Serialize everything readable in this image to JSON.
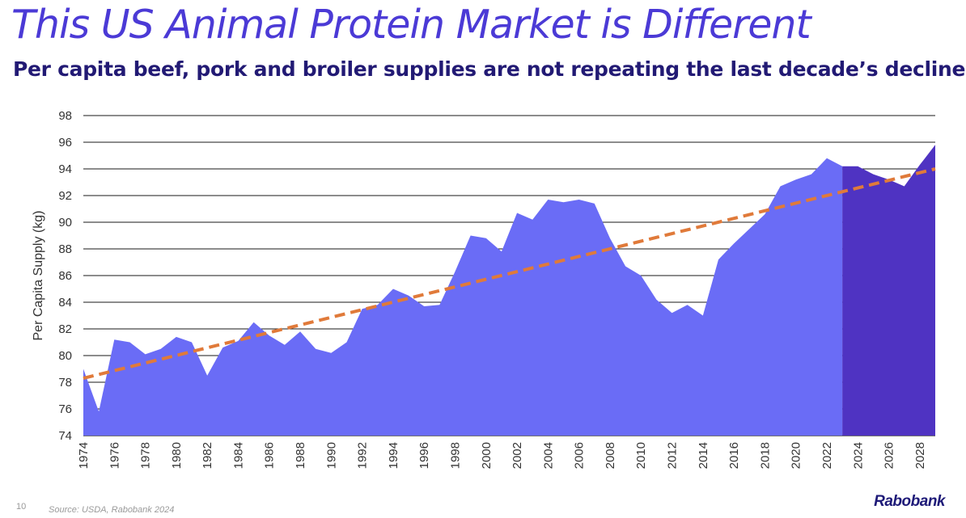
{
  "title": "This US Animal Protein Market is Different",
  "subtitle": "Per capita beef, pork and broiler supplies are not repeating the last decade’s decline",
  "footer": {
    "page_number": "10",
    "source": "Source: USDA, Rabobank 2024",
    "logo": "Rabobank"
  },
  "colors": {
    "historical_fill": "#6a6cf6",
    "forecast_fill": "#4f33c2",
    "trend_line": "#e07a3a",
    "title": "#4b3ad6",
    "subtitle": "#221a74"
  },
  "chart_data": {
    "type": "area",
    "title": "",
    "xlabel": "",
    "ylabel": "Per Capita Supply (kg)",
    "ylim": [
      74,
      98
    ],
    "yticks": [
      74,
      76,
      78,
      80,
      82,
      84,
      86,
      88,
      90,
      92,
      94,
      96,
      98
    ],
    "xticks": [
      "1974",
      "1976",
      "1978",
      "1980",
      "1982",
      "1984",
      "1986",
      "1988",
      "1990",
      "1992",
      "1994",
      "1996",
      "1998",
      "2000",
      "2002",
      "2004",
      "2006",
      "2008",
      "2010",
      "2012",
      "2014",
      "2016",
      "2018",
      "2020",
      "2022",
      "2024",
      "2026",
      "2028"
    ],
    "x": [
      1974,
      1975,
      1976,
      1977,
      1978,
      1979,
      1980,
      1981,
      1982,
      1983,
      1984,
      1985,
      1986,
      1987,
      1988,
      1989,
      1990,
      1991,
      1992,
      1993,
      1994,
      1995,
      1996,
      1997,
      1998,
      1999,
      2000,
      2001,
      2002,
      2003,
      2004,
      2005,
      2006,
      2007,
      2008,
      2009,
      2010,
      2011,
      2012,
      2013,
      2014,
      2015,
      2016,
      2017,
      2018,
      2019,
      2020,
      2021,
      2022,
      2023,
      2024,
      2025,
      2026,
      2027,
      2028,
      2029
    ],
    "values": [
      79.0,
      75.8,
      81.2,
      81.0,
      80.1,
      80.5,
      81.4,
      81.0,
      78.5,
      80.6,
      81.1,
      82.5,
      81.5,
      80.8,
      81.8,
      80.5,
      80.2,
      81.0,
      83.5,
      83.8,
      85.0,
      84.5,
      83.7,
      83.8,
      86.3,
      89.0,
      88.8,
      87.8,
      90.7,
      90.2,
      91.7,
      91.5,
      91.7,
      91.4,
      88.8,
      86.7,
      86.0,
      84.2,
      83.2,
      83.8,
      83.0,
      87.2,
      88.4,
      89.5,
      90.6,
      92.7,
      93.2,
      93.6,
      94.8,
      94.2,
      94.2,
      93.6,
      93.2,
      92.7,
      94.3,
      95.8
    ],
    "forecast_start": 2023,
    "series": [
      {
        "values_ref": "values",
        "segment": "historical"
      },
      {
        "values_ref": "values",
        "segment": "forecast"
      }
    ],
    "trend": {
      "style": "dashed",
      "from": [
        1974,
        78.3
      ],
      "to": [
        2029,
        94.0
      ]
    },
    "grid": true,
    "legend": "none"
  }
}
